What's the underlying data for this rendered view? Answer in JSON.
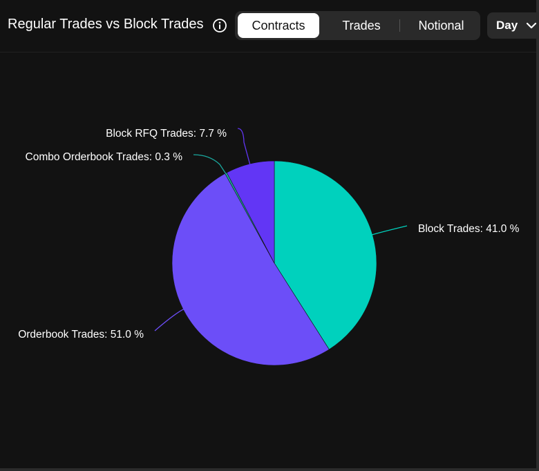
{
  "header": {
    "title": "Regular Trades vs Block Trades",
    "tabs": [
      {
        "label": "Contracts",
        "active": true
      },
      {
        "label": "Trades",
        "active": false
      },
      {
        "label": "Notional",
        "active": false
      }
    ],
    "period": "Day"
  },
  "icons": {
    "info": "info-icon",
    "dropdown": "chevron-down-icon"
  },
  "chart_data": {
    "type": "pie",
    "title": "",
    "series": [
      {
        "name": "Block Trades",
        "value": 41.0,
        "color": "#00d1bd",
        "label": "Block Trades: 41.0 %"
      },
      {
        "name": "Orderbook Trades",
        "value": 51.0,
        "color": "#6c4ef8",
        "label": "Orderbook Trades: 51.0 %"
      },
      {
        "name": "Combo Orderbook Trades",
        "value": 0.3,
        "color": "#1aa99f",
        "label": "Combo Orderbook Trades: 0.3 %"
      },
      {
        "name": "Block RFQ Trades",
        "value": 7.7,
        "color": "#6236f5",
        "label": "Block RFQ Trades: 7.7 %"
      }
    ]
  }
}
